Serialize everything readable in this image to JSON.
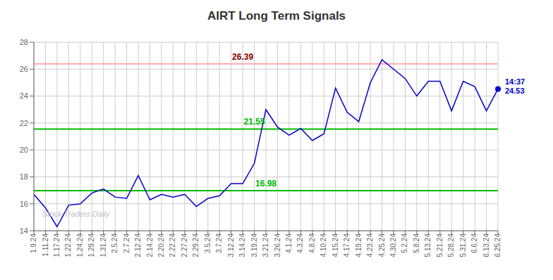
{
  "chart_data": {
    "type": "line",
    "title": "AIRT Long Term Signals",
    "categories": [
      "1.9.24",
      "1.11.24",
      "1.17.24",
      "1.22.24",
      "1.24.24",
      "1.29.24",
      "1.31.24",
      "2.5.24",
      "2.7.24",
      "2.12.24",
      "2.14.24",
      "2.20.24",
      "2.22.24",
      "2.27.24",
      "2.29.24",
      "3.5.24",
      "3.7.24",
      "3.12.24",
      "3.14.24",
      "3.19.24",
      "3.21.24",
      "3.26.24",
      "4.1.24",
      "4.3.24",
      "4.8.24",
      "4.10.24",
      "4.15.24",
      "4.17.24",
      "4.19.24",
      "4.23.24",
      "4.25.24",
      "4.30.24",
      "5.2.24",
      "5.8.24",
      "5.13.24",
      "5.21.24",
      "5.28.24",
      "5.31.24",
      "6.6.24",
      "6.13.24",
      "6.25.24"
    ],
    "values": [
      16.7,
      15.7,
      14.3,
      15.9,
      16.0,
      16.8,
      17.1,
      16.5,
      16.4,
      18.1,
      16.3,
      16.7,
      16.5,
      16.7,
      15.8,
      16.4,
      16.6,
      17.5,
      17.5,
      19.0,
      23.0,
      21.7,
      21.1,
      21.6,
      20.7,
      21.2,
      24.6,
      22.8,
      22.1,
      25.0,
      26.7,
      26.0,
      25.3,
      24.0,
      25.1,
      25.1,
      22.9,
      25.1,
      24.7,
      22.9,
      24.53
    ],
    "color": "#0000cc",
    "ylim": [
      14,
      28
    ],
    "yticks": [
      14,
      16,
      18,
      20,
      22,
      24,
      26,
      28
    ],
    "grid": true,
    "reference_lines": [
      {
        "value": 26.39,
        "color": "#ffaaaa",
        "text_color": "#880000"
      },
      {
        "value": 21.55,
        "color": "#00bb00",
        "text_color": "#00bb00"
      },
      {
        "value": 16.98,
        "color": "#00bb00",
        "text_color": "#00bb00"
      }
    ],
    "annotations": [
      {
        "text": "Stock Traders Daily",
        "color": "#c0c0c0"
      },
      {
        "text": "14:37",
        "value": 24.53,
        "color": "#0000cc"
      }
    ]
  }
}
